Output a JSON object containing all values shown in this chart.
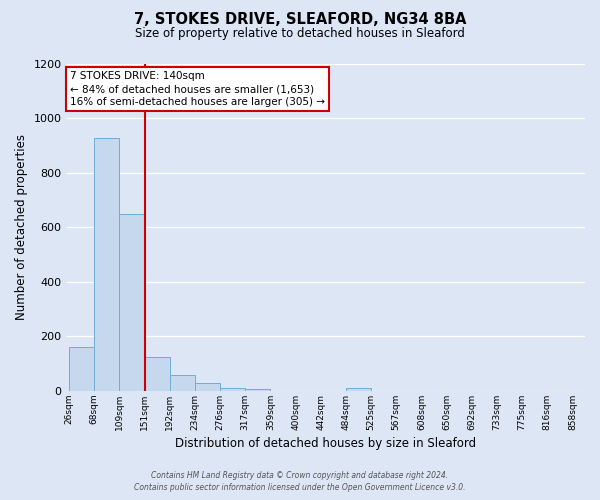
{
  "title": "7, STOKES DRIVE, SLEAFORD, NG34 8BA",
  "subtitle": "Size of property relative to detached houses in Sleaford",
  "xlabel": "Distribution of detached houses by size in Sleaford",
  "ylabel": "Number of detached properties",
  "bin_labels": [
    "26sqm",
    "68sqm",
    "109sqm",
    "151sqm",
    "192sqm",
    "234sqm",
    "276sqm",
    "317sqm",
    "359sqm",
    "400sqm",
    "442sqm",
    "484sqm",
    "525sqm",
    "567sqm",
    "608sqm",
    "650sqm",
    "692sqm",
    "733sqm",
    "775sqm",
    "816sqm",
    "858sqm"
  ],
  "bar_values": [
    160,
    930,
    650,
    125,
    58,
    28,
    10,
    8,
    0,
    0,
    0,
    12,
    0,
    0,
    0,
    0,
    0,
    0,
    0,
    0
  ],
  "bar_color": "#c5d8ee",
  "bar_edge_color": "#6baed6",
  "bg_color": "#dce6f5",
  "grid_color": "#ffffff",
  "vline_color": "#cc0000",
  "annotation_title": "7 STOKES DRIVE: 140sqm",
  "annotation_line1": "← 84% of detached houses are smaller (1,653)",
  "annotation_line2": "16% of semi-detached houses are larger (305) →",
  "annotation_box_color": "#ffffff",
  "annotation_box_edgecolor": "#cc0000",
  "footer1": "Contains HM Land Registry data © Crown copyright and database right 2024.",
  "footer2": "Contains public sector information licensed under the Open Government Licence v3.0.",
  "ylim": [
    0,
    1200
  ],
  "yticks": [
    0,
    200,
    400,
    600,
    800,
    1000,
    1200
  ]
}
